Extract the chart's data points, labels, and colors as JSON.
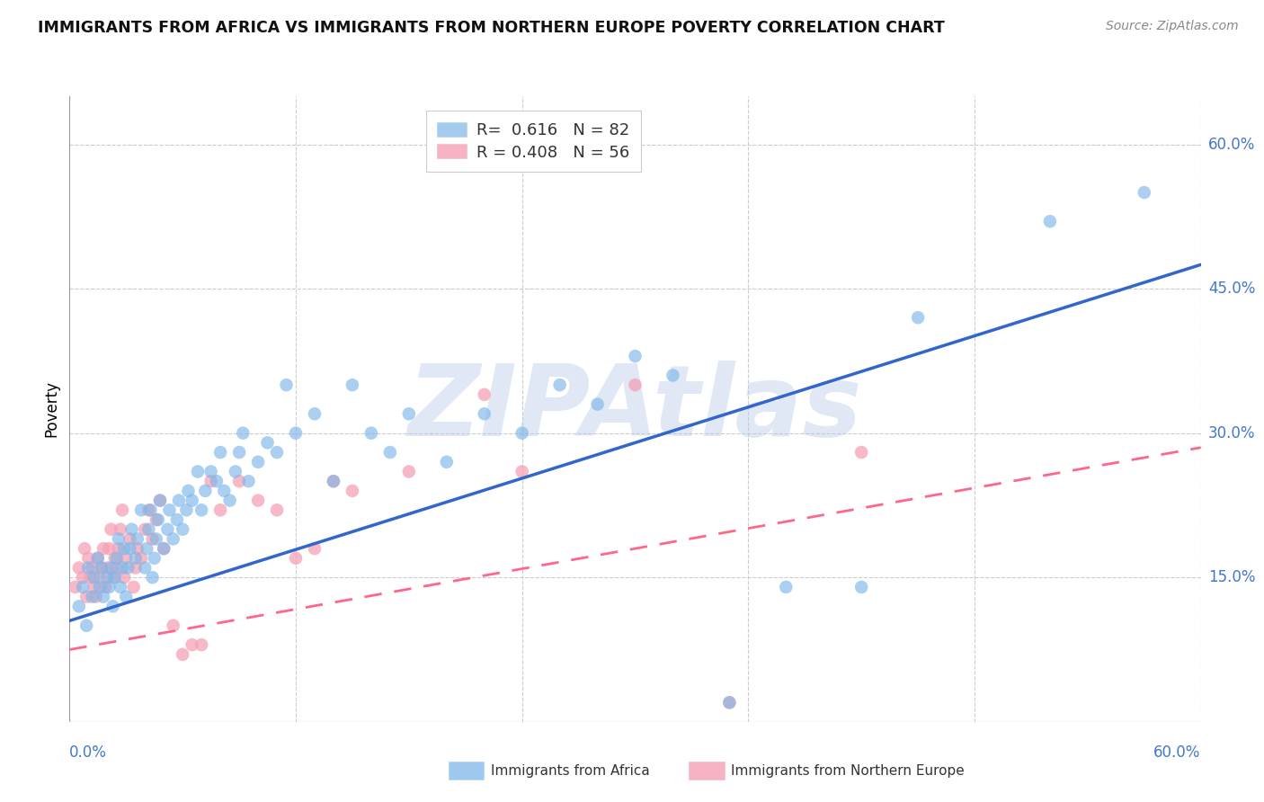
{
  "title": "IMMIGRANTS FROM AFRICA VS IMMIGRANTS FROM NORTHERN EUROPE POVERTY CORRELATION CHART",
  "source": "Source: ZipAtlas.com",
  "ylabel": "Poverty",
  "xlim": [
    0.0,
    0.6
  ],
  "ylim": [
    -0.05,
    0.65
  ],
  "plot_ylim": [
    0.0,
    0.6
  ],
  "y_ticks_right": [
    0.15,
    0.3,
    0.45,
    0.6
  ],
  "y_tick_labels_right": [
    "15.0%",
    "30.0%",
    "45.0%",
    "60.0%"
  ],
  "grid_color": "#cccccc",
  "background_color": "#ffffff",
  "watermark": "ZIPAtlas",
  "watermark_color": "#b8cce8",
  "africa_color": "#7EB6E8",
  "northern_europe_color": "#F5A0B5",
  "africa_line_color": "#3366CC",
  "northern_europe_line_color": "#FF6688",
  "legend_africa_R": "0.616",
  "legend_africa_N": "82",
  "legend_northern_europe_R": "0.408",
  "legend_northern_europe_N": "56",
  "africa_scatter_x": [
    0.005,
    0.007,
    0.009,
    0.01,
    0.012,
    0.013,
    0.015,
    0.016,
    0.017,
    0.018,
    0.02,
    0.021,
    0.022,
    0.023,
    0.024,
    0.025,
    0.026,
    0.027,
    0.028,
    0.029,
    0.03,
    0.031,
    0.032,
    0.033,
    0.035,
    0.036,
    0.038,
    0.04,
    0.041,
    0.042,
    0.043,
    0.044,
    0.045,
    0.046,
    0.047,
    0.048,
    0.05,
    0.052,
    0.053,
    0.055,
    0.057,
    0.058,
    0.06,
    0.062,
    0.063,
    0.065,
    0.068,
    0.07,
    0.072,
    0.075,
    0.078,
    0.08,
    0.082,
    0.085,
    0.088,
    0.09,
    0.092,
    0.095,
    0.1,
    0.105,
    0.11,
    0.115,
    0.12,
    0.13,
    0.14,
    0.15,
    0.16,
    0.17,
    0.18,
    0.2,
    0.22,
    0.24,
    0.26,
    0.28,
    0.3,
    0.32,
    0.35,
    0.38,
    0.42,
    0.45,
    0.52,
    0.57
  ],
  "africa_scatter_y": [
    0.12,
    0.14,
    0.1,
    0.16,
    0.13,
    0.15,
    0.17,
    0.14,
    0.16,
    0.13,
    0.15,
    0.14,
    0.16,
    0.12,
    0.15,
    0.17,
    0.19,
    0.14,
    0.16,
    0.18,
    0.13,
    0.16,
    0.18,
    0.2,
    0.17,
    0.19,
    0.22,
    0.16,
    0.18,
    0.2,
    0.22,
    0.15,
    0.17,
    0.19,
    0.21,
    0.23,
    0.18,
    0.2,
    0.22,
    0.19,
    0.21,
    0.23,
    0.2,
    0.22,
    0.24,
    0.23,
    0.26,
    0.22,
    0.24,
    0.26,
    0.25,
    0.28,
    0.24,
    0.23,
    0.26,
    0.28,
    0.3,
    0.25,
    0.27,
    0.29,
    0.28,
    0.35,
    0.3,
    0.32,
    0.25,
    0.35,
    0.3,
    0.28,
    0.32,
    0.27,
    0.32,
    0.3,
    0.35,
    0.33,
    0.38,
    0.36,
    0.02,
    0.14,
    0.14,
    0.42,
    0.52,
    0.55
  ],
  "northern_europe_scatter_x": [
    0.003,
    0.005,
    0.007,
    0.008,
    0.009,
    0.01,
    0.011,
    0.012,
    0.013,
    0.014,
    0.015,
    0.016,
    0.017,
    0.018,
    0.019,
    0.02,
    0.021,
    0.022,
    0.023,
    0.024,
    0.025,
    0.026,
    0.027,
    0.028,
    0.029,
    0.03,
    0.032,
    0.034,
    0.035,
    0.036,
    0.038,
    0.04,
    0.042,
    0.044,
    0.046,
    0.048,
    0.05,
    0.055,
    0.06,
    0.065,
    0.07,
    0.075,
    0.08,
    0.09,
    0.1,
    0.11,
    0.12,
    0.13,
    0.14,
    0.15,
    0.18,
    0.22,
    0.24,
    0.3,
    0.35,
    0.42
  ],
  "northern_europe_scatter_y": [
    0.14,
    0.16,
    0.15,
    0.18,
    0.13,
    0.17,
    0.15,
    0.16,
    0.14,
    0.13,
    0.17,
    0.15,
    0.16,
    0.18,
    0.14,
    0.16,
    0.18,
    0.2,
    0.15,
    0.17,
    0.16,
    0.18,
    0.2,
    0.22,
    0.15,
    0.17,
    0.19,
    0.14,
    0.16,
    0.18,
    0.17,
    0.2,
    0.22,
    0.19,
    0.21,
    0.23,
    0.18,
    0.1,
    0.07,
    0.08,
    0.08,
    0.25,
    0.22,
    0.25,
    0.23,
    0.22,
    0.17,
    0.18,
    0.25,
    0.24,
    0.26,
    0.34,
    0.26,
    0.35,
    0.02,
    0.28
  ],
  "africa_line_y_start": 0.105,
  "africa_line_y_end": 0.475,
  "northern_europe_line_y_start": 0.075,
  "northern_europe_line_y_end": 0.285
}
